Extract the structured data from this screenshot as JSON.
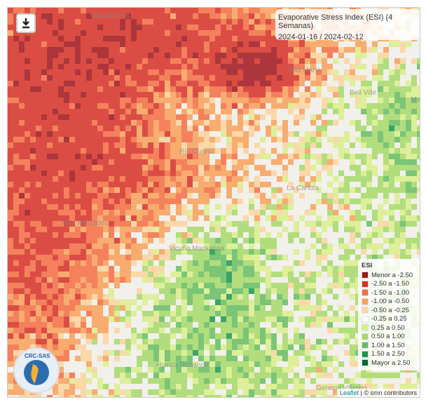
{
  "title": "Evaporative Stress Index (ESI) (4 Semanas)",
  "date_range": "2024-01-16 / 2024-02-12",
  "legend": {
    "title": "ESI",
    "items": [
      {
        "label": "Menor a -2.50",
        "color": "#a0151c"
      },
      {
        "label": "-2.50 a -1.50",
        "color": "#d73027"
      },
      {
        "label": "-1.50 a -1.00",
        "color": "#f46d43"
      },
      {
        "label": "-1.00 a -0.50",
        "color": "#f9a05a"
      },
      {
        "label": "-0.50 a -0.25",
        "color": "#fdd49e"
      },
      {
        "label": "-0.25 a 0.25",
        "color": "#ffffff"
      },
      {
        "label": "0.25 a 0.50",
        "color": "#d9ef8b"
      },
      {
        "label": "0.50 a 1.00",
        "color": "#a6d96a"
      },
      {
        "label": "1.00 a 1.50",
        "color": "#66bd63"
      },
      {
        "label": "1.50 a 2.50",
        "color": "#1a9850"
      },
      {
        "label": "Mayor a 2.50",
        "color": "#006837"
      }
    ]
  },
  "places": [
    "Villa Dolores",
    "Villa María",
    "Bell Ville",
    "Mar",
    "Río Cuarto",
    "La Carlota",
    "Villa Mercedes",
    "Vicuña Mackenna",
    "Huinca Renancó",
    "General Villegas"
  ],
  "logo": "CRC-SAS",
  "attribution": {
    "link": "Leaflet",
    "text": "| © smn contributors"
  }
}
